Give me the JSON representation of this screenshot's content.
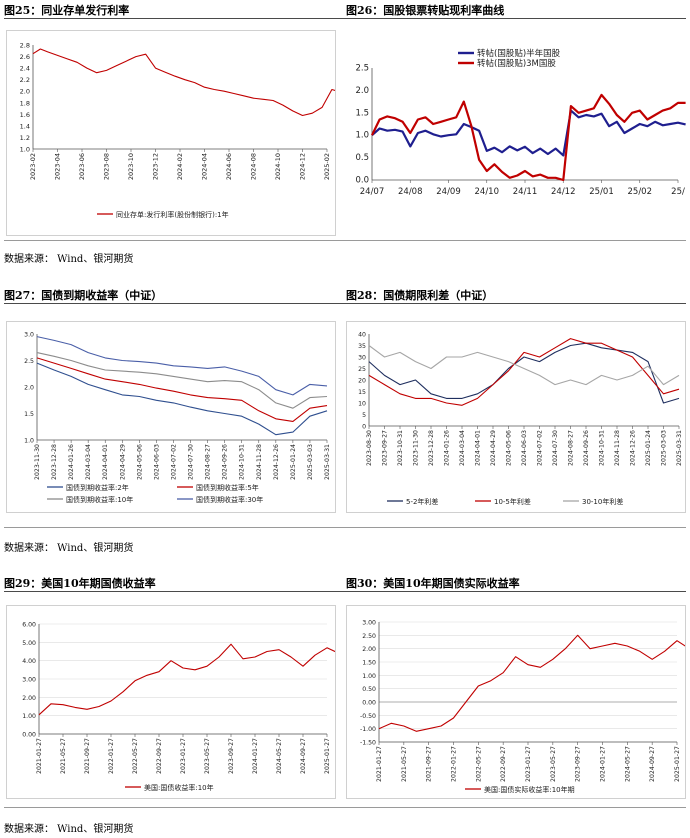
{
  "layout_text": {
    "fig25_title": "图25：同业存单发行利率",
    "fig26_title": "图26：国股银票转贴现利率曲线",
    "fig27_title": "图27：国债到期收益率（中证）",
    "fig28_title": "图28：国债期限利差（中证）",
    "fig29_title": "图29：美国10年期国债收益率",
    "fig30_title": "图30：美国10年期国债实际收益率",
    "source": "数据来源： Wind、银河期货"
  },
  "chart_data": [
    {
      "id": "fig25",
      "type": "line",
      "title": "图25：同业存单发行利率",
      "ylim": [
        1.0,
        2.8
      ],
      "yticks": [
        "1.0",
        "1.2",
        "1.4",
        "1.6",
        "1.8",
        "2.0",
        "2.2",
        "2.4",
        "2.6",
        "2.8"
      ],
      "xticks": [
        "2023-02",
        "2023-04",
        "2023-06",
        "2023-08",
        "2023-10",
        "2023-12",
        "2024-02",
        "2024-04",
        "2024-06",
        "2024-08",
        "2024-10",
        "2024-12",
        "2025-02"
      ],
      "grid": false,
      "legend_position": "bottom",
      "series": [
        {
          "name": "同业存单:发行利率(股份制银行):1年",
          "color": "#c00000",
          "x": [
            0,
            0.3,
            0.6,
            1,
            1.4,
            1.8,
            2.2,
            2.6,
            3,
            3.4,
            3.8,
            4.2,
            4.6,
            5,
            5.4,
            5.8,
            6.2,
            6.6,
            7,
            7.4,
            7.8,
            8.2,
            8.6,
            9,
            9.4,
            9.8,
            10.2,
            10.6,
            11,
            11.4,
            11.8,
            12.2,
            12.5,
            12.8
          ],
          "values": [
            2.65,
            2.73,
            2.68,
            2.62,
            2.56,
            2.5,
            2.4,
            2.32,
            2.36,
            2.44,
            2.52,
            2.6,
            2.64,
            2.4,
            2.33,
            2.26,
            2.2,
            2.15,
            2.07,
            2.03,
            2.0,
            1.96,
            1.92,
            1.88,
            1.86,
            1.84,
            1.76,
            1.66,
            1.58,
            1.62,
            1.72,
            2.03,
            1.99,
            1.9
          ]
        }
      ]
    },
    {
      "id": "fig26",
      "type": "line",
      "title": "图26：国股银票转贴现利率曲线",
      "ylim": [
        0.0,
        2.5
      ],
      "yticks": [
        "0.0",
        "0.5",
        "1.0",
        "1.5",
        "2.0",
        "2.5"
      ],
      "xticks": [
        "24/07",
        "24/08",
        "24/09",
        "24/10",
        "24/11",
        "24/12",
        "25/01",
        "25/02",
        "25/"
      ],
      "grid": false,
      "legend_position": "top",
      "series": [
        {
          "name": "转帖(国股贴)半年国股",
          "color": "#1f1f8f",
          "x": [
            0,
            0.2,
            0.4,
            0.6,
            0.8,
            1.0,
            1.2,
            1.4,
            1.6,
            1.8,
            2.0,
            2.2,
            2.4,
            2.6,
            2.8,
            3.0,
            3.2,
            3.4,
            3.6,
            3.8,
            4.0,
            4.2,
            4.4,
            4.6,
            4.8,
            5.0,
            5.2,
            5.4,
            5.6,
            5.8,
            6.0,
            6.2,
            6.4,
            6.6,
            6.8,
            7.0,
            7.2,
            7.4,
            7.6,
            7.8,
            8.0,
            8.2
          ],
          "values": [
            1.0,
            1.15,
            1.1,
            1.12,
            1.08,
            0.75,
            1.05,
            1.1,
            1.02,
            0.97,
            1.0,
            1.02,
            1.25,
            1.18,
            1.1,
            0.65,
            0.72,
            0.62,
            0.75,
            0.66,
            0.74,
            0.6,
            0.7,
            0.58,
            0.7,
            0.55,
            1.55,
            1.4,
            1.45,
            1.42,
            1.48,
            1.2,
            1.3,
            1.05,
            1.15,
            1.25,
            1.2,
            1.3,
            1.22,
            1.25,
            1.28,
            1.24
          ]
        },
        {
          "name": "转帖(国股贴)3M国股",
          "color": "#c00000",
          "x": [
            0,
            0.2,
            0.4,
            0.6,
            0.8,
            1.0,
            1.2,
            1.4,
            1.6,
            1.8,
            2.0,
            2.2,
            2.4,
            2.6,
            2.8,
            3.0,
            3.2,
            3.4,
            3.6,
            3.8,
            4.0,
            4.2,
            4.4,
            4.6,
            4.8,
            5.0,
            5.2,
            5.4,
            5.6,
            5.8,
            6.0,
            6.2,
            6.4,
            6.6,
            6.8,
            7.0,
            7.2,
            7.4,
            7.6,
            7.8,
            8.0,
            8.2
          ],
          "values": [
            1.0,
            1.35,
            1.42,
            1.38,
            1.3,
            1.05,
            1.35,
            1.4,
            1.25,
            1.3,
            1.35,
            1.4,
            1.75,
            1.2,
            0.45,
            0.2,
            0.35,
            0.18,
            0.05,
            0.1,
            0.2,
            0.08,
            0.12,
            0.05,
            0.05,
            0.0,
            1.65,
            1.5,
            1.55,
            1.6,
            1.9,
            1.7,
            1.45,
            1.3,
            1.5,
            1.55,
            1.35,
            1.45,
            1.55,
            1.6,
            1.72,
            1.72
          ]
        }
      ]
    },
    {
      "id": "fig27",
      "type": "line",
      "title": "图27：国债到期收益率（中证）",
      "ylim": [
        1.0,
        3.0
      ],
      "yticks": [
        "1.0",
        "1.5",
        "2.0",
        "2.5",
        "3.0"
      ],
      "xticks": [
        "2023-11-30",
        "2023-12-28",
        "2024-01-26",
        "2024-03-04",
        "2024-04-01",
        "2024-04-29",
        "2024-05-06",
        "2024-06-03",
        "2024-07-02",
        "2024-07-30",
        "2024-08-27",
        "2024-09-26",
        "2024-10-31",
        "2024-11-28",
        "2024-12-26",
        "2025-01-24",
        "2025-03-03",
        "2025-03-31"
      ],
      "grid": false,
      "legend_position": "bottom",
      "series": [
        {
          "name": "国债到期收益率:2年",
          "color": "#2f4f8f",
          "x": [
            0,
            1,
            2,
            3,
            4,
            5,
            6,
            7,
            8,
            9,
            10,
            11,
            12,
            13,
            14,
            15,
            16,
            17
          ],
          "values": [
            2.45,
            2.32,
            2.2,
            2.05,
            1.95,
            1.85,
            1.82,
            1.75,
            1.7,
            1.62,
            1.55,
            1.5,
            1.45,
            1.3,
            1.1,
            1.15,
            1.45,
            1.55
          ]
        },
        {
          "name": "国债到期收益率:5年",
          "color": "#c00000",
          "x": [
            0,
            1,
            2,
            3,
            4,
            5,
            6,
            7,
            8,
            9,
            10,
            11,
            12,
            13,
            14,
            15,
            16,
            17
          ],
          "values": [
            2.55,
            2.45,
            2.35,
            2.25,
            2.15,
            2.1,
            2.05,
            1.98,
            1.92,
            1.85,
            1.8,
            1.78,
            1.75,
            1.55,
            1.4,
            1.35,
            1.6,
            1.65
          ]
        },
        {
          "name": "国债到期收益率:10年",
          "color": "#8c8c8c",
          "x": [
            0,
            1,
            2,
            3,
            4,
            5,
            6,
            7,
            8,
            9,
            10,
            11,
            12,
            13,
            14,
            15,
            16,
            17
          ],
          "values": [
            2.65,
            2.58,
            2.5,
            2.4,
            2.32,
            2.3,
            2.28,
            2.25,
            2.2,
            2.15,
            2.1,
            2.12,
            2.1,
            1.95,
            1.7,
            1.6,
            1.8,
            1.82
          ]
        },
        {
          "name": "国债到期收益率:30年",
          "color": "#4a5fa8",
          "x": [
            0,
            1,
            2,
            3,
            4,
            5,
            6,
            7,
            8,
            9,
            10,
            11,
            12,
            13,
            14,
            15,
            16,
            17
          ],
          "values": [
            2.95,
            2.88,
            2.8,
            2.65,
            2.55,
            2.5,
            2.48,
            2.45,
            2.4,
            2.38,
            2.35,
            2.38,
            2.3,
            2.2,
            1.95,
            1.85,
            2.05,
            2.02
          ]
        }
      ]
    },
    {
      "id": "fig28",
      "type": "line",
      "title": "图28：国债期限利差（中证）",
      "ylim": [
        0,
        40
      ],
      "yticks": [
        "0",
        "5",
        "10",
        "15",
        "20",
        "25",
        "30",
        "35",
        "40"
      ],
      "xticks": [
        "2023-08-30",
        "2023-09-27",
        "2023-10-31",
        "2023-11-30",
        "2023-12-28",
        "2024-01-26",
        "2024-03-04",
        "2024-04-01",
        "2024-04-29",
        "2024-05-06",
        "2024-06-03",
        "2024-07-02",
        "2024-07-30",
        "2024-08-27",
        "2024-09-26",
        "2024-10-31",
        "2024-11-28",
        "2024-12-26",
        "2025-01-24",
        "2025-03-03",
        "2025-03-31"
      ],
      "grid": false,
      "legend_position": "bottom",
      "series": [
        {
          "name": "5-2年利差",
          "color": "#1f2f5f",
          "x": [
            0,
            1,
            2,
            3,
            4,
            5,
            6,
            7,
            8,
            9,
            10,
            11,
            12,
            13,
            14,
            15,
            16,
            17,
            18,
            19,
            20
          ],
          "values": [
            28,
            22,
            18,
            20,
            14,
            12,
            12,
            14,
            18,
            25,
            30,
            28,
            32,
            35,
            36,
            34,
            33,
            32,
            28,
            10,
            12
          ]
        },
        {
          "name": "10-5年利差",
          "color": "#c00000",
          "x": [
            0,
            1,
            2,
            3,
            4,
            5,
            6,
            7,
            8,
            9,
            10,
            11,
            12,
            13,
            14,
            15,
            16,
            17,
            18,
            19,
            20
          ],
          "values": [
            22,
            18,
            14,
            12,
            12,
            10,
            9,
            12,
            18,
            24,
            32,
            30,
            34,
            38,
            36,
            36,
            33,
            30,
            22,
            14,
            16
          ]
        },
        {
          "name": "30-10年利差",
          "color": "#a6a6a6",
          "x": [
            0,
            1,
            2,
            3,
            4,
            5,
            6,
            7,
            8,
            9,
            10,
            11,
            12,
            13,
            14,
            15,
            16,
            17,
            18,
            19,
            20
          ],
          "values": [
            35,
            30,
            32,
            28,
            25,
            30,
            30,
            32,
            30,
            28,
            25,
            22,
            18,
            20,
            18,
            22,
            20,
            22,
            26,
            18,
            22
          ]
        }
      ]
    },
    {
      "id": "fig29",
      "type": "line",
      "title": "图29：美国10年期国债收益率",
      "ylim": [
        0.0,
        6.0
      ],
      "yticks": [
        "0.00",
        "1.00",
        "2.00",
        "3.00",
        "4.00",
        "5.00",
        "6.00"
      ],
      "xticks": [
        "2021-01-27",
        "2021-05-27",
        "2021-09-27",
        "2022-01-27",
        "2022-05-27",
        "2022-09-27",
        "2023-01-27",
        "2023-05-27",
        "2023-09-27",
        "2024-01-27",
        "2024-05-27",
        "2024-09-27",
        "2025-01-27"
      ],
      "grid": true,
      "legend_position": "bottom",
      "series": [
        {
          "name": "美国:国债收益率:10年",
          "color": "#c00000",
          "x": [
            0,
            0.5,
            1,
            1.5,
            2,
            2.5,
            3,
            3.5,
            4,
            4.5,
            5,
            5.5,
            6,
            6.5,
            7,
            7.5,
            8,
            8.5,
            9,
            9.5,
            10,
            10.5,
            11,
            11.5,
            12,
            12.5,
            13
          ],
          "values": [
            1.05,
            1.65,
            1.6,
            1.45,
            1.35,
            1.5,
            1.8,
            2.3,
            2.9,
            3.2,
            3.4,
            4.0,
            3.6,
            3.5,
            3.7,
            4.2,
            4.9,
            4.1,
            4.2,
            4.5,
            4.6,
            4.2,
            3.7,
            4.3,
            4.7,
            4.4,
            4.25
          ]
        }
      ]
    },
    {
      "id": "fig30",
      "type": "line",
      "title": "图30：美国10年期国债实际收益率",
      "ylim": [
        -1.5,
        3.0
      ],
      "yticks": [
        "-1.50",
        "-1.00",
        "-0.50",
        "0.00",
        "0.50",
        "1.00",
        "1.50",
        "2.00",
        "2.50",
        "3.00"
      ],
      "xticks": [
        "2021-01-27",
        "2021-05-27",
        "2021-09-27",
        "2022-01-27",
        "2022-05-27",
        "2022-09-27",
        "2023-01-27",
        "2023-05-27",
        "2023-09-27",
        "2024-01-27",
        "2024-05-27",
        "2024-09-27",
        "2025-01-27"
      ],
      "grid": true,
      "legend_position": "bottom",
      "series": [
        {
          "name": "美国:国债实际收益率:10年期",
          "color": "#c00000",
          "x": [
            0,
            0.5,
            1,
            1.5,
            2,
            2.5,
            3,
            3.5,
            4,
            4.5,
            5,
            5.5,
            6,
            6.5,
            7,
            7.5,
            8,
            8.5,
            9,
            9.5,
            10,
            10.5,
            11,
            11.5,
            12,
            12.5,
            13
          ],
          "values": [
            -1.0,
            -0.8,
            -0.9,
            -1.1,
            -1.0,
            -0.9,
            -0.6,
            0.0,
            0.6,
            0.8,
            1.1,
            1.7,
            1.4,
            1.3,
            1.6,
            2.0,
            2.5,
            2.0,
            2.1,
            2.2,
            2.1,
            1.9,
            1.6,
            1.9,
            2.3,
            2.0,
            1.95
          ]
        }
      ]
    }
  ]
}
